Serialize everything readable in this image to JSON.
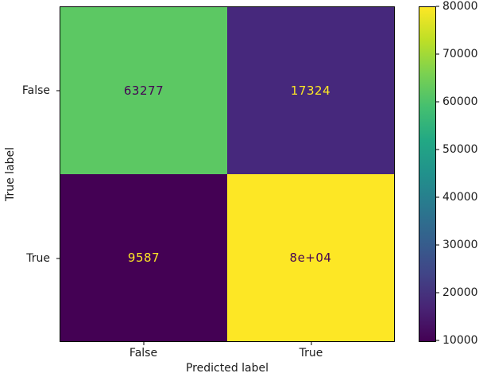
{
  "figure": {
    "background": "#ffffff",
    "text_color": "#1a1a1a"
  },
  "chart_data": {
    "type": "heatmap",
    "subtype": "confusion_matrix",
    "title": "",
    "xlabel": "Predicted label",
    "ylabel": "True label",
    "x_categories": [
      "False",
      "True"
    ],
    "y_categories": [
      "False",
      "True"
    ],
    "values": [
      [
        63277,
        17324
      ],
      [
        9587,
        80000
      ]
    ],
    "cell_labels": [
      [
        "63277",
        "17324"
      ],
      [
        "9587",
        "8e+04"
      ]
    ],
    "cell_colors": [
      [
        "#5cc863",
        "#46287c"
      ],
      [
        "#440154",
        "#fde725"
      ]
    ],
    "cell_text_colors": [
      [
        "#440154",
        "#fde725"
      ],
      [
        "#fde725",
        "#440154"
      ]
    ],
    "colormap": "viridis",
    "vmin": 9587,
    "vmax": 80000,
    "viridis_stops": [
      "#440154",
      "#482475",
      "#414487",
      "#355f8d",
      "#2a788e",
      "#21918c",
      "#22a884",
      "#44bf70",
      "#7ad151",
      "#bddf26",
      "#fde725"
    ],
    "colorbar": {
      "tick_values": [
        10000,
        20000,
        30000,
        40000,
        50000,
        60000,
        70000,
        80000
      ],
      "tick_labels": [
        "10000",
        "20000",
        "30000",
        "40000",
        "50000",
        "60000",
        "70000",
        "80000"
      ],
      "position": "right"
    },
    "grid": false,
    "legend": false
  }
}
